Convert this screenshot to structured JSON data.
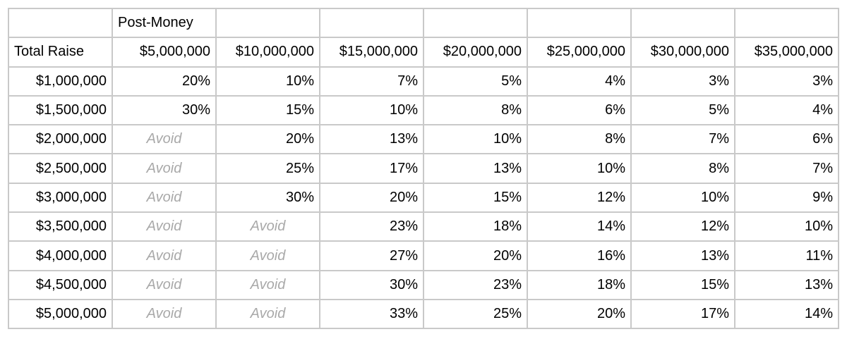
{
  "table": {
    "post_money_label": "Post-Money",
    "total_raise_label": "Total Raise",
    "avoid_label": "Avoid",
    "post_money_columns": [
      "$5,000,000",
      "$10,000,000",
      "$15,000,000",
      "$20,000,000",
      "$25,000,000",
      "$30,000,000",
      "$35,000,000"
    ],
    "rows": [
      {
        "raise": "$1,000,000",
        "values": [
          "20%",
          "10%",
          "7%",
          "5%",
          "4%",
          "3%",
          "3%"
        ]
      },
      {
        "raise": "$1,500,000",
        "values": [
          "30%",
          "15%",
          "10%",
          "8%",
          "6%",
          "5%",
          "4%"
        ]
      },
      {
        "raise": "$2,000,000",
        "values": [
          "Avoid",
          "20%",
          "13%",
          "10%",
          "8%",
          "7%",
          "6%"
        ]
      },
      {
        "raise": "$2,500,000",
        "values": [
          "Avoid",
          "25%",
          "17%",
          "13%",
          "10%",
          "8%",
          "7%"
        ]
      },
      {
        "raise": "$3,000,000",
        "values": [
          "Avoid",
          "30%",
          "20%",
          "15%",
          "12%",
          "10%",
          "9%"
        ]
      },
      {
        "raise": "$3,500,000",
        "values": [
          "Avoid",
          "Avoid",
          "23%",
          "18%",
          "14%",
          "12%",
          "10%"
        ]
      },
      {
        "raise": "$4,000,000",
        "values": [
          "Avoid",
          "Avoid",
          "27%",
          "20%",
          "16%",
          "13%",
          "11%"
        ]
      },
      {
        "raise": "$4,500,000",
        "values": [
          "Avoid",
          "Avoid",
          "30%",
          "23%",
          "18%",
          "15%",
          "13%"
        ]
      },
      {
        "raise": "$5,000,000",
        "values": [
          "Avoid",
          "Avoid",
          "33%",
          "25%",
          "20%",
          "17%",
          "14%"
        ]
      }
    ],
    "colors": {
      "border": "#c9c9c9",
      "text": "#000000",
      "avoid_text": "#a9a9a9",
      "background": "#ffffff"
    }
  }
}
